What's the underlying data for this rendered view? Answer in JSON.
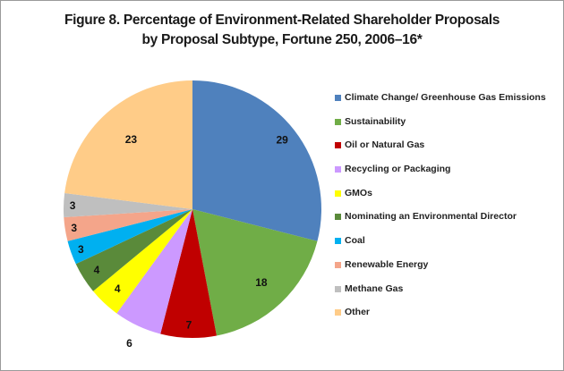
{
  "chart_data": {
    "type": "pie",
    "title": "Figure 8. Percentage of Environment-Related Shareholder Proposals",
    "subtitle": "by Proposal Subtype, Fortune 250, 2006–16*",
    "legend_position": "right",
    "start": "top, clockwise",
    "slices": [
      {
        "label": "Climate Change/ Greenhouse Gas Emissions",
        "value": 29,
        "color": "#4F81BD"
      },
      {
        "label": "Sustainability",
        "value": 18,
        "color": "#70AD47"
      },
      {
        "label": "Oil or Natural Gas",
        "value": 7,
        "color": "#C00000"
      },
      {
        "label": "Recycling or Packaging",
        "value": 6,
        "color": "#CC99FF"
      },
      {
        "label": "GMOs",
        "value": 4,
        "color": "#FFFF00"
      },
      {
        "label": "Nominating an Environmental Director",
        "value": 4,
        "color": "#5A8A3A"
      },
      {
        "label": "Coal",
        "value": 3,
        "color": "#00B0F0"
      },
      {
        "label": "Renewable Energy",
        "value": 3,
        "color": "#F4A58A"
      },
      {
        "label": "Methane Gas",
        "value": 3,
        "color": "#BFBFBF"
      },
      {
        "label": "Other",
        "value": 23,
        "color": "#FFCC88"
      }
    ]
  }
}
